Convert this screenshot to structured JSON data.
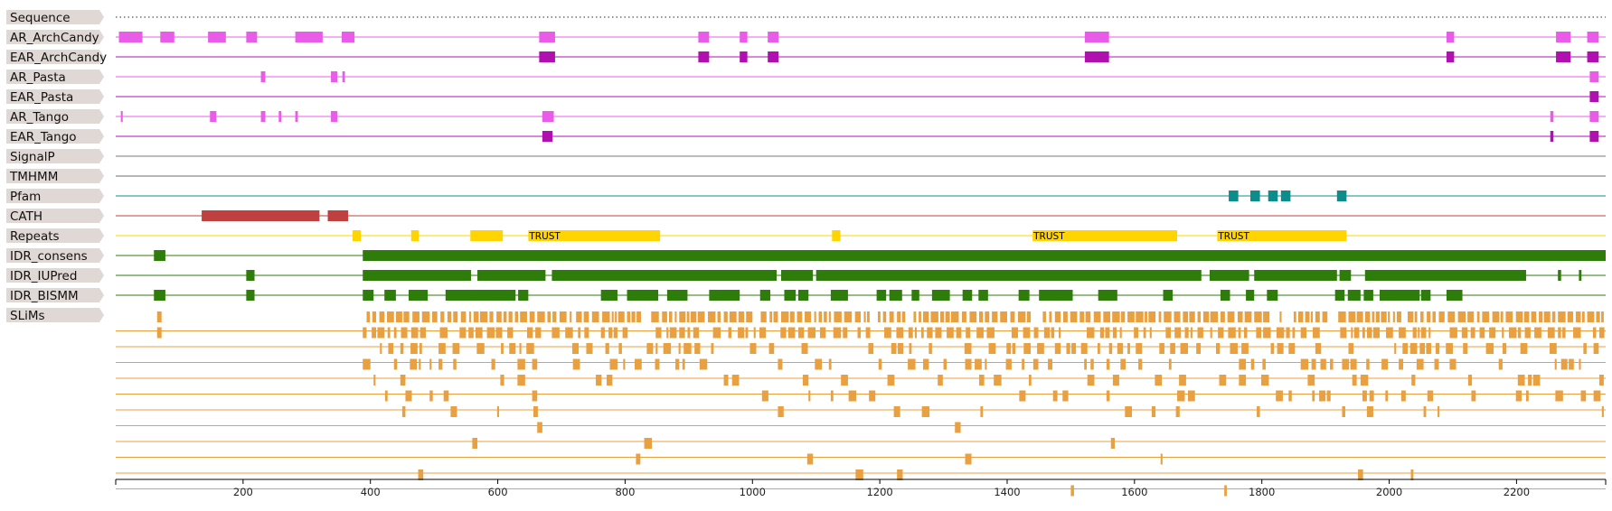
{
  "tracks": [
    {
      "id": "sequence",
      "label": "Sequence",
      "color": "#555555",
      "line": "dotted",
      "features": []
    },
    {
      "id": "ar-archcandy",
      "label": "AR_ArchCandy",
      "color": "#E85CE8",
      "line": "solid",
      "features": [
        [
          5,
          42
        ],
        [
          70,
          92
        ],
        [
          145,
          173
        ],
        [
          205,
          222
        ],
        [
          282,
          325
        ],
        [
          355,
          375
        ],
        [
          665,
          690
        ],
        [
          915,
          932
        ],
        [
          980,
          992
        ],
        [
          1024,
          1041
        ],
        [
          1522,
          1560
        ],
        [
          2090,
          2102
        ],
        [
          2262,
          2285
        ],
        [
          2311,
          2329
        ]
      ]
    },
    {
      "id": "ear-archcandy",
      "label": "EAR_ArchCandy",
      "color": "#B010B0",
      "line": "solid",
      "features": [
        [
          665,
          690
        ],
        [
          915,
          932
        ],
        [
          980,
          992
        ],
        [
          1024,
          1041
        ],
        [
          1522,
          1560
        ],
        [
          2090,
          2102
        ],
        [
          2262,
          2285
        ],
        [
          2311,
          2329
        ]
      ]
    },
    {
      "id": "ar-pasta",
      "label": "AR_Pasta",
      "color": "#E85CE8",
      "line": "solid",
      "features": [
        [
          228,
          235
        ],
        [
          338,
          348
        ],
        [
          356,
          360
        ],
        [
          2315,
          2329
        ]
      ]
    },
    {
      "id": "ear-pasta",
      "label": "EAR_Pasta",
      "color": "#B010B0",
      "line": "solid",
      "features": [
        [
          2315,
          2329
        ]
      ]
    },
    {
      "id": "ar-tango",
      "label": "AR_Tango",
      "color": "#E85CE8",
      "line": "solid",
      "features": [
        [
          8,
          11
        ],
        [
          148,
          158
        ],
        [
          228,
          235
        ],
        [
          256,
          260
        ],
        [
          282,
          286
        ],
        [
          338,
          348
        ],
        [
          670,
          688
        ],
        [
          2253,
          2258
        ],
        [
          2315,
          2329
        ]
      ]
    },
    {
      "id": "ear-tango",
      "label": "EAR_Tango",
      "color": "#B010B0",
      "line": "solid",
      "features": [
        [
          670,
          686
        ],
        [
          2253,
          2258
        ],
        [
          2315,
          2329
        ]
      ]
    },
    {
      "id": "signalp",
      "label": "SignalP",
      "color": "#7A7A7A",
      "line": "solid",
      "features": []
    },
    {
      "id": "tmhmm",
      "label": "TMHMM",
      "color": "#6E6E6E",
      "line": "solid",
      "features": []
    },
    {
      "id": "pfam",
      "label": "Pfam",
      "color": "#0D8C8C",
      "line": "solid",
      "features": [
        [
          1748,
          1763
        ],
        [
          1782,
          1797
        ],
        [
          1810,
          1825
        ],
        [
          1830,
          1845
        ],
        [
          1918,
          1933
        ]
      ]
    },
    {
      "id": "cath",
      "label": "CATH",
      "color": "#C04040",
      "line": "solid",
      "features": [
        [
          135,
          320
        ],
        [
          333,
          365
        ]
      ]
    },
    {
      "id": "repeats",
      "label": "Repeats",
      "color": "#FFD400",
      "line": "solid",
      "features": [
        [
          372,
          385
        ],
        [
          464,
          476
        ],
        [
          557,
          608
        ],
        [
          648,
          855
        ],
        [
          1125,
          1138
        ],
        [
          1440,
          1667
        ],
        [
          1730,
          1933
        ]
      ]
    },
    {
      "id": "idr-consens",
      "label": "IDR_consens",
      "color": "#2E7D0A",
      "line": "solid",
      "features": [
        [
          60,
          78
        ],
        [
          388,
          2340
        ]
      ]
    },
    {
      "id": "idr-iupred",
      "label": "IDR_IUPred",
      "color": "#2E7D0A",
      "line": "solid",
      "features": [
        [
          205,
          218
        ],
        [
          388,
          558
        ],
        [
          568,
          675
        ],
        [
          685,
          1038
        ],
        [
          1045,
          1095
        ],
        [
          1100,
          1705
        ],
        [
          1718,
          1780
        ],
        [
          1788,
          1918
        ],
        [
          1922,
          1940
        ],
        [
          1962,
          2215
        ],
        [
          2265,
          2270
        ],
        [
          2298,
          2302
        ]
      ]
    },
    {
      "id": "idr-bismm",
      "label": "IDR_BISMM",
      "color": "#2E7D0A",
      "line": "solid",
      "features": [
        [
          60,
          78
        ],
        [
          205,
          218
        ],
        [
          388,
          405
        ],
        [
          422,
          440
        ],
        [
          460,
          490
        ],
        [
          518,
          628
        ],
        [
          632,
          648
        ],
        [
          762,
          788
        ],
        [
          803,
          852
        ],
        [
          866,
          898
        ],
        [
          932,
          980
        ],
        [
          1012,
          1028
        ],
        [
          1050,
          1068
        ],
        [
          1072,
          1088
        ],
        [
          1123,
          1150
        ],
        [
          1195,
          1210
        ],
        [
          1215,
          1235
        ],
        [
          1250,
          1262
        ],
        [
          1282,
          1310
        ],
        [
          1330,
          1345
        ],
        [
          1355,
          1370
        ],
        [
          1418,
          1435
        ],
        [
          1450,
          1503
        ],
        [
          1543,
          1573
        ],
        [
          1645,
          1660
        ],
        [
          1735,
          1750
        ],
        [
          1775,
          1788
        ],
        [
          1808,
          1825
        ],
        [
          1915,
          1930
        ],
        [
          1935,
          1955
        ],
        [
          1960,
          1975
        ],
        [
          1985,
          2048
        ],
        [
          2050,
          2065
        ],
        [
          2090,
          2115
        ]
      ]
    },
    {
      "id": "slims",
      "label": "SLiMs",
      "color": "#E8A040",
      "line": "none",
      "features": []
    }
  ],
  "slims": {
    "color": "#E8A040",
    "rows": 12,
    "start": 388,
    "end": 2340,
    "extra_first_rows": [
      [
        65,
        72
      ]
    ],
    "extra_second_row": [
      [
        65,
        72
      ]
    ]
  },
  "axis": {
    "min": 0,
    "max": 2340,
    "ticks": [
      200,
      400,
      600,
      800,
      1000,
      1200,
      1400,
      1600,
      1800,
      2000,
      2200
    ],
    "tick_labels": [
      "200",
      "400",
      "600",
      "800",
      "1000",
      "1200",
      "1400",
      "1600",
      "1800",
      "2000",
      "2200"
    ]
  },
  "annotations": [
    {
      "track": "repeats",
      "text": "TRUST",
      "position": 648
    },
    {
      "track": "repeats",
      "text": "TRUST",
      "position": 1440
    },
    {
      "track": "repeats",
      "text": "TRUST",
      "position": 1730
    }
  ]
}
